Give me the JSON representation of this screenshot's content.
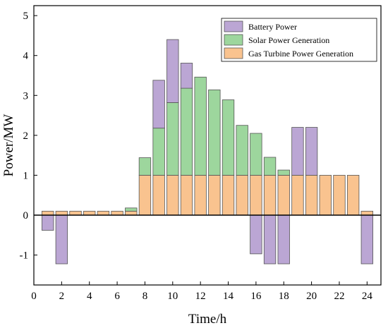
{
  "chart_data": {
    "type": "bar",
    "stacked": true,
    "title": "",
    "xlabel": "Time/h",
    "ylabel": "Power/MW",
    "xlim": [
      0,
      25
    ],
    "ylim": [
      -1.75,
      5.25
    ],
    "xticks": [
      0,
      2,
      4,
      6,
      8,
      10,
      12,
      14,
      16,
      18,
      20,
      22,
      24
    ],
    "yticks": [
      -1,
      0,
      1,
      2,
      3,
      4,
      5
    ],
    "x": [
      1,
      2,
      3,
      4,
      5,
      6,
      7,
      8,
      9,
      10,
      11,
      12,
      13,
      14,
      15,
      16,
      17,
      18,
      19,
      20,
      21,
      22,
      23,
      24
    ],
    "series": [
      {
        "name": "Gas Turbine Power Generation",
        "color": "#F9C38F",
        "values": [
          0.1,
          0.1,
          0.1,
          0.1,
          0.1,
          0.1,
          0.1,
          1.0,
          1.0,
          1.0,
          1.0,
          1.0,
          1.0,
          1.0,
          1.0,
          1.0,
          1.0,
          1.0,
          1.0,
          1.0,
          1.0,
          1.0,
          1.0,
          0.1
        ]
      },
      {
        "name": "Solar Power Generation",
        "color": "#9DD69D",
        "values": [
          0,
          0,
          0,
          0,
          0,
          0,
          0.08,
          0.44,
          1.18,
          1.82,
          2.18,
          2.46,
          2.14,
          1.89,
          1.25,
          1.05,
          0.45,
          0.13,
          0,
          0,
          0,
          0,
          0,
          0
        ]
      },
      {
        "name": "Battery Power",
        "color": "#BBA6D4",
        "values": [
          -0.38,
          -1.22,
          0,
          0,
          0,
          0,
          0,
          0,
          1.2,
          1.58,
          0.63,
          0,
          0,
          0,
          0,
          -0.97,
          -1.22,
          -1.22,
          1.2,
          1.2,
          0,
          0,
          0,
          -1.22
        ]
      }
    ],
    "legend": {
      "position": "top-right",
      "order": [
        "Battery Power",
        "Solar Power Generation",
        "Gas Turbine Power Generation"
      ]
    },
    "grid": false
  }
}
